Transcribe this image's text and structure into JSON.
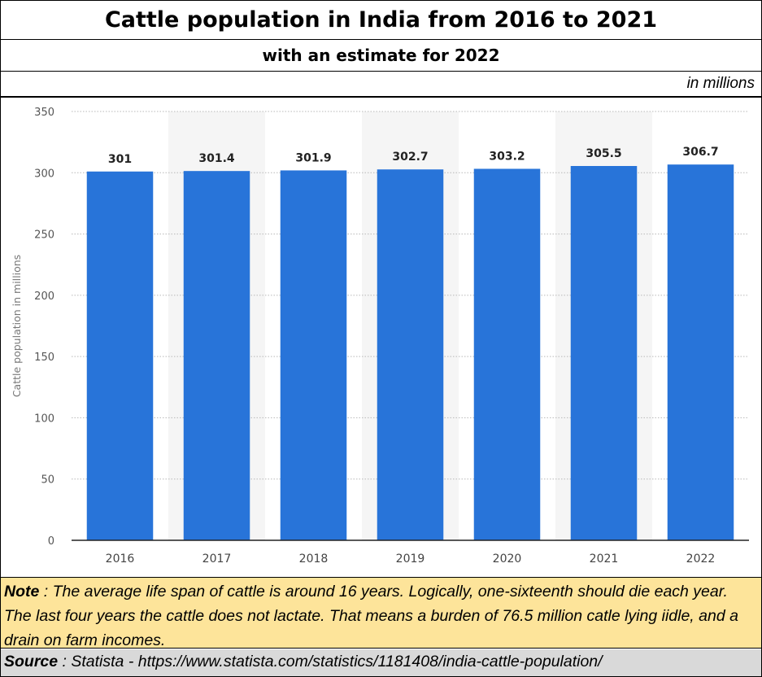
{
  "header": {
    "title": "Cattle population in India from 2016 to 2021",
    "subtitle": "with an estimate for 2022",
    "unit_note": "in millions"
  },
  "chart_data": {
    "type": "bar",
    "categories": [
      "2016",
      "2017",
      "2018",
      "2019",
      "2020",
      "2021",
      "2022"
    ],
    "values": [
      301,
      301.4,
      301.9,
      302.7,
      303.2,
      305.5,
      306.7
    ],
    "data_labels": [
      "301",
      "301.4",
      "301.9",
      "302.7",
      "303.2",
      "305.5",
      "306.7"
    ],
    "ylabel": "Cattle population in millions",
    "xlabel": "",
    "ylim": [
      0,
      350
    ],
    "yticks": [
      "0",
      "50",
      "100",
      "150",
      "200",
      "250",
      "300",
      "350"
    ],
    "grid": true,
    "alternating_band": true,
    "bar_color": "#2874d9"
  },
  "footer": {
    "note_label": "Note",
    "note_text": ": The average life span of cattle is around 16 years.  Logically, one-sixteenth should die each year.  The last four years the cattle does not lactate.  That means a burden of 76.5 million catle lying iidle, and a drain on farm incomes.",
    "source_label": "Source",
    "source_text": ": Statista - https://www.statista.com/statistics/1181408/india-cattle-population/"
  },
  "colors": {
    "note_bg": "#fde49a",
    "source_bg": "#d9d9d9",
    "band": "#f5f5f5"
  }
}
